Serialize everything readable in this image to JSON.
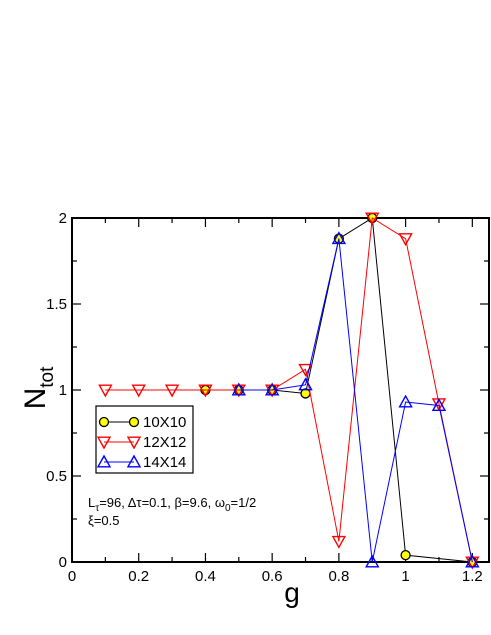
{
  "chart_data": {
    "type": "line",
    "xlabel": "g",
    "ylabel": {
      "main": "N",
      "sub": "tot"
    },
    "xlim": [
      0,
      1.25
    ],
    "ylim": [
      0,
      2
    ],
    "x_ticks": [
      {
        "value": 0,
        "label": "0"
      },
      {
        "value": 0.2,
        "label": "0.2"
      },
      {
        "value": 0.4,
        "label": "0.4"
      },
      {
        "value": 0.6,
        "label": "0.6"
      },
      {
        "value": 0.8,
        "label": "0.8"
      },
      {
        "value": 1.0,
        "label": "1"
      },
      {
        "value": 1.2,
        "label": "1.2"
      }
    ],
    "y_ticks": [
      {
        "value": 0,
        "label": "0"
      },
      {
        "value": 0.5,
        "label": "0.5"
      },
      {
        "value": 1.0,
        "label": "1"
      },
      {
        "value": 1.5,
        "label": "1.5"
      },
      {
        "value": 2.0,
        "label": "2"
      }
    ],
    "grid": false,
    "legend_position": "lower-left",
    "series": [
      {
        "name": "10X10",
        "marker": "circle",
        "line_color": "#000000",
        "marker_stroke": "#000000",
        "marker_fill": "#ffff00",
        "points": [
          [
            0.4,
            1.0
          ],
          [
            0.5,
            1.0
          ],
          [
            0.6,
            1.0
          ],
          [
            0.7,
            0.98
          ],
          [
            0.8,
            1.88
          ],
          [
            0.9,
            2.0
          ],
          [
            1.0,
            0.04
          ],
          [
            1.2,
            0.0
          ]
        ]
      },
      {
        "name": "12X12",
        "marker": "triangle-down",
        "line_color": "#ff0000",
        "marker_stroke": "#ff0000",
        "marker_fill": "none",
        "points": [
          [
            0.1,
            1.0
          ],
          [
            0.2,
            1.0
          ],
          [
            0.3,
            1.0
          ],
          [
            0.4,
            1.0
          ],
          [
            0.5,
            1.0
          ],
          [
            0.6,
            1.0
          ],
          [
            0.7,
            1.12
          ],
          [
            0.8,
            0.12
          ],
          [
            0.9,
            2.0
          ],
          [
            1.0,
            1.88
          ],
          [
            1.1,
            0.92
          ],
          [
            1.2,
            0.0
          ]
        ]
      },
      {
        "name": "14X14",
        "marker": "triangle-up",
        "line_color": "#0000ff",
        "marker_stroke": "#0000ff",
        "marker_fill": "none",
        "points": [
          [
            0.5,
            1.0
          ],
          [
            0.6,
            1.0
          ],
          [
            0.7,
            1.03
          ],
          [
            0.8,
            1.88
          ],
          [
            0.9,
            0.0
          ],
          [
            1.0,
            0.93
          ],
          [
            1.1,
            0.91
          ],
          [
            1.2,
            0.0
          ]
        ]
      }
    ],
    "annotation": {
      "line1": {
        "part1": "L",
        "sub1": "τ",
        "part2": "=96, Δτ=0.1, β=9.6, ω",
        "sub2": "0",
        "part3": "=1/2"
      },
      "line2": "ξ=0.5"
    }
  }
}
